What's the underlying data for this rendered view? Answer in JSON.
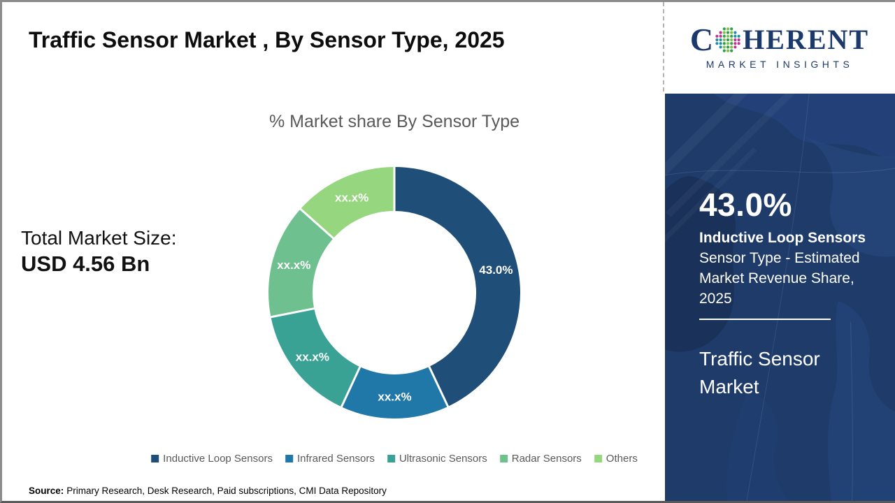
{
  "page": {
    "title": "Traffic Sensor Market , By Sensor Type, 2025",
    "source_label": "Source:",
    "source_text": "Primary Research, Desk Research, Paid subscriptions, CMI Data Repository"
  },
  "logo": {
    "brand_c": "C",
    "brand_rest": "HERENT",
    "tagline": "MARKET INSIGHTS",
    "brand_color": "#1B3A6B"
  },
  "left_panel": {
    "total_label": "Total Market Size:",
    "total_value": "USD 4.56 Bn"
  },
  "chart_data": {
    "type": "pie",
    "donut": true,
    "title": "% Market share By Sensor Type",
    "start_angle_deg": 0,
    "direction": "clockwise",
    "categories": [
      "Inductive Loop Sensors",
      "Infrared Sensors",
      "Ultrasonic Sensors",
      "Radar Sensors",
      "Others"
    ],
    "values": [
      43.0,
      13.9,
      15.0,
      14.7,
      13.4
    ],
    "display_labels": [
      "43.0%",
      "xx.x%",
      "xx.x%",
      "xx.x%",
      "xx.x%"
    ],
    "colors": [
      "#1F4E79",
      "#1F78A8",
      "#3AA295",
      "#6EC08F",
      "#95D67F"
    ],
    "label_color": "#FFFFFF",
    "legend_position": "bottom"
  },
  "sidebar": {
    "stat_value": "43.0%",
    "stat_title": "Inductive Loop Sensors",
    "stat_desc": "Sensor Type - Estimated Market Revenue Share, 2025",
    "market_name": "Traffic Sensor Market",
    "bg_color": "#1E3B6A"
  }
}
